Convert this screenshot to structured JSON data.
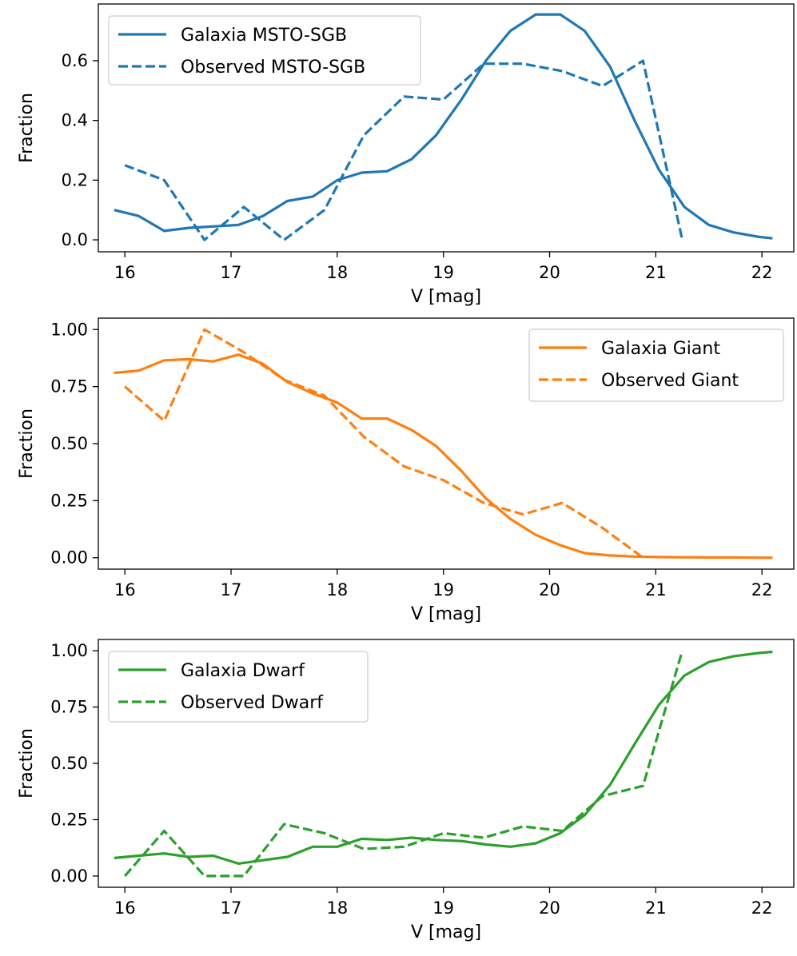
{
  "chart_data": [
    {
      "type": "line",
      "xlabel": "V [mag]",
      "ylabel": "Fraction",
      "xlim": [
        15.75,
        22.3
      ],
      "ylim": [
        -0.04,
        0.79
      ],
      "xticks": [
        "16",
        "17",
        "18",
        "19",
        "20",
        "21",
        "22"
      ],
      "yticks": [
        "0.0",
        "0.2",
        "0.4",
        "0.6"
      ],
      "legend_position": "top-left",
      "color": "#1f77b4",
      "series": [
        {
          "name": "Galaxia MSTO-SGB",
          "style": "solid",
          "x": [
            15.9,
            16.13,
            16.37,
            16.6,
            16.83,
            17.07,
            17.3,
            17.53,
            17.77,
            18.0,
            18.23,
            18.47,
            18.7,
            18.93,
            19.17,
            19.4,
            19.63,
            19.87,
            20.1,
            20.33,
            20.57,
            20.8,
            21.03,
            21.27,
            21.5,
            21.73,
            21.97,
            22.1
          ],
          "y": [
            0.1,
            0.08,
            0.03,
            0.04,
            0.045,
            0.05,
            0.08,
            0.13,
            0.145,
            0.2,
            0.225,
            0.23,
            0.27,
            0.35,
            0.47,
            0.6,
            0.7,
            0.755,
            0.755,
            0.7,
            0.58,
            0.4,
            0.235,
            0.11,
            0.05,
            0.025,
            0.01,
            0.005
          ]
        },
        {
          "name": "Observed MSTO-SGB",
          "style": "dashed",
          "x": [
            16.0,
            16.37,
            16.75,
            17.12,
            17.5,
            17.88,
            18.25,
            18.63,
            19.0,
            19.38,
            19.75,
            20.12,
            20.5,
            20.88,
            21.25
          ],
          "y": [
            0.25,
            0.2,
            0.0,
            0.11,
            0.0,
            0.1,
            0.35,
            0.48,
            0.47,
            0.59,
            0.59,
            0.565,
            0.515,
            0.6,
            0.0
          ]
        }
      ]
    },
    {
      "type": "line",
      "xlabel": "V [mag]",
      "ylabel": "Fraction",
      "xlim": [
        15.75,
        22.3
      ],
      "ylim": [
        -0.05,
        1.05
      ],
      "xticks": [
        "16",
        "17",
        "18",
        "19",
        "20",
        "21",
        "22"
      ],
      "yticks": [
        "0.00",
        "0.25",
        "0.50",
        "0.75",
        "1.00"
      ],
      "legend_position": "top-right",
      "color": "#ff7f0e",
      "series": [
        {
          "name": "Galaxia Giant",
          "style": "solid",
          "x": [
            15.9,
            16.13,
            16.37,
            16.6,
            16.83,
            17.07,
            17.3,
            17.53,
            17.77,
            18.0,
            18.23,
            18.47,
            18.7,
            18.93,
            19.17,
            19.4,
            19.63,
            19.87,
            20.1,
            20.33,
            20.57,
            20.8,
            21.03,
            21.27,
            21.5,
            21.73,
            21.97,
            22.1
          ],
          "y": [
            0.81,
            0.82,
            0.865,
            0.87,
            0.86,
            0.89,
            0.85,
            0.77,
            0.72,
            0.68,
            0.61,
            0.61,
            0.56,
            0.49,
            0.38,
            0.26,
            0.17,
            0.1,
            0.055,
            0.02,
            0.01,
            0.005,
            0.003,
            0.002,
            0.001,
            0.001,
            0.0,
            0.0
          ]
        },
        {
          "name": "Observed Giant",
          "style": "dashed",
          "x": [
            16.0,
            16.37,
            16.75,
            17.12,
            17.5,
            17.88,
            18.25,
            18.63,
            19.0,
            19.38,
            19.75,
            20.12,
            20.5,
            20.88
          ],
          "y": [
            0.75,
            0.6,
            1.0,
            0.9,
            0.78,
            0.71,
            0.53,
            0.4,
            0.34,
            0.24,
            0.19,
            0.24,
            0.13,
            0.0
          ]
        }
      ]
    },
    {
      "type": "line",
      "xlabel": "V [mag]",
      "ylabel": "Fraction",
      "xlim": [
        15.75,
        22.3
      ],
      "ylim": [
        -0.05,
        1.05
      ],
      "xticks": [
        "16",
        "17",
        "18",
        "19",
        "20",
        "21",
        "22"
      ],
      "yticks": [
        "0.00",
        "0.25",
        "0.50",
        "0.75",
        "1.00"
      ],
      "legend_position": "top-left",
      "color": "#2ca02c",
      "series": [
        {
          "name": "Galaxia Dwarf",
          "style": "solid",
          "x": [
            15.9,
            16.13,
            16.37,
            16.6,
            16.83,
            17.07,
            17.3,
            17.53,
            17.77,
            18.0,
            18.23,
            18.47,
            18.7,
            18.93,
            19.17,
            19.4,
            19.63,
            19.87,
            20.1,
            20.33,
            20.57,
            20.8,
            21.03,
            21.27,
            21.5,
            21.73,
            21.97,
            22.1
          ],
          "y": [
            0.08,
            0.09,
            0.1,
            0.085,
            0.09,
            0.055,
            0.07,
            0.085,
            0.13,
            0.13,
            0.165,
            0.16,
            0.17,
            0.16,
            0.155,
            0.14,
            0.13,
            0.145,
            0.19,
            0.27,
            0.405,
            0.585,
            0.76,
            0.89,
            0.95,
            0.975,
            0.99,
            0.995
          ]
        },
        {
          "name": "Observed Dwarf",
          "style": "dashed",
          "x": [
            16.0,
            16.37,
            16.75,
            17.12,
            17.5,
            17.88,
            18.25,
            18.63,
            19.0,
            19.38,
            19.75,
            20.12,
            20.5,
            20.88,
            21.25
          ],
          "y": [
            0.0,
            0.2,
            0.0,
            0.0,
            0.23,
            0.19,
            0.12,
            0.13,
            0.19,
            0.17,
            0.22,
            0.2,
            0.355,
            0.4,
            1.0
          ]
        }
      ]
    }
  ]
}
